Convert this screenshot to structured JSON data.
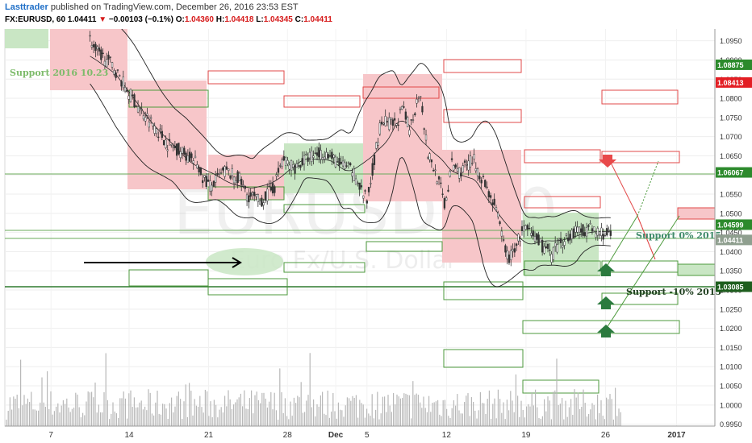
{
  "header": {
    "author": "Lasttrader",
    "published": "published on TradingView.com, December 26, 2016 23:53 EST",
    "symbol": "FX:EURUSD, 60",
    "last": "1.04411",
    "change": "−0.00103 (−0.1%)",
    "o_label": "O:",
    "o": "1.04360",
    "h_label": "H:",
    "h": "1.04418",
    "l_label": "L:",
    "l": "1.04345",
    "c_label": "C:",
    "c": "1.04411"
  },
  "watermark": {
    "symbol": "EURUSD, 60",
    "name": "Euro Fx/U.S. Dollar"
  },
  "annotations": {
    "support_2016": "Support 2016 10.23",
    "support_0": "Support  0% 2015",
    "support_10": "Support  -10% 2015"
  },
  "colors": {
    "bear_zone": "#f7c6c9",
    "bull_zone": "#c9e6c4",
    "red_box": "#e24848",
    "green_box": "#4c9a3c",
    "candle": "#333333",
    "volume": "#b8b8b8",
    "price_label_green": "#2c8a2c",
    "price_label_red": "#e31e24",
    "price_label_current": "#8f9f8f",
    "price_label_dark": "#1e5e1e"
  },
  "chart_data": {
    "type": "candlestick",
    "x_ticks": [
      "7",
      "14",
      "21",
      "28",
      "Dec",
      "5",
      "12",
      "19",
      "26",
      "2017"
    ],
    "y_ticks": [
      "1.0950",
      "1.0900",
      "1.0850",
      "1.0800",
      "1.0750",
      "1.0700",
      "1.0650",
      "1.0600",
      "1.0550",
      "1.0500",
      "1.0450",
      "1.0400",
      "1.0350",
      "1.0300",
      "1.0250",
      "1.0200",
      "1.0150",
      "1.0100",
      "1.0050",
      "1.0000",
      "0.9950"
    ],
    "ylim": [
      0.9945,
      1.0985
    ],
    "price_labels": [
      {
        "value": 1.08875,
        "text": "1.08875",
        "color": "green"
      },
      {
        "value": 1.08413,
        "text": "1.08413",
        "color": "red"
      },
      {
        "value": 1.06067,
        "text": "1.06067",
        "color": "green"
      },
      {
        "value": 1.04599,
        "text": "1.04599",
        "color": "green"
      },
      {
        "value": 1.04411,
        "text": "1.04411",
        "color": "current"
      },
      {
        "value": 1.03085,
        "text": "1.03085",
        "color": "dark"
      }
    ],
    "price_path": [
      [
        0.12,
        1.0955
      ],
      [
        0.13,
        1.092
      ],
      [
        0.15,
        1.089
      ],
      [
        0.17,
        1.083
      ],
      [
        0.19,
        1.077
      ],
      [
        0.21,
        1.073
      ],
      [
        0.23,
        1.068
      ],
      [
        0.25,
        1.066
      ],
      [
        0.27,
        1.063
      ],
      [
        0.28,
        1.059
      ],
      [
        0.29,
        1.057
      ],
      [
        0.31,
        1.061
      ],
      [
        0.33,
        1.059
      ],
      [
        0.34,
        1.055
      ],
      [
        0.36,
        1.053
      ],
      [
        0.38,
        1.057
      ],
      [
        0.39,
        1.064
      ],
      [
        0.41,
        1.062
      ],
      [
        0.43,
        1.065
      ],
      [
        0.45,
        1.066
      ],
      [
        0.47,
        1.063
      ],
      [
        0.49,
        1.061
      ],
      [
        0.51,
        1.053
      ],
      [
        0.52,
        1.064
      ],
      [
        0.53,
        1.074
      ],
      [
        0.55,
        1.073
      ],
      [
        0.56,
        1.077
      ],
      [
        0.57,
        1.072
      ],
      [
        0.585,
        1.0825
      ],
      [
        0.595,
        1.066
      ],
      [
        0.61,
        1.059
      ],
      [
        0.62,
        1.052
      ],
      [
        0.63,
        1.063
      ],
      [
        0.64,
        1.061
      ],
      [
        0.66,
        1.064
      ],
      [
        0.67,
        1.06
      ],
      [
        0.69,
        1.052
      ],
      [
        0.7,
        1.044
      ],
      [
        0.71,
        1.038
      ],
      [
        0.72,
        1.042
      ],
      [
        0.73,
        1.046
      ],
      [
        0.75,
        1.043
      ],
      [
        0.77,
        1.039
      ],
      [
        0.78,
        1.042
      ],
      [
        0.8,
        1.045
      ],
      [
        0.82,
        1.046
      ],
      [
        0.84,
        1.045
      ],
      [
        0.855,
        1.044
      ]
    ]
  }
}
